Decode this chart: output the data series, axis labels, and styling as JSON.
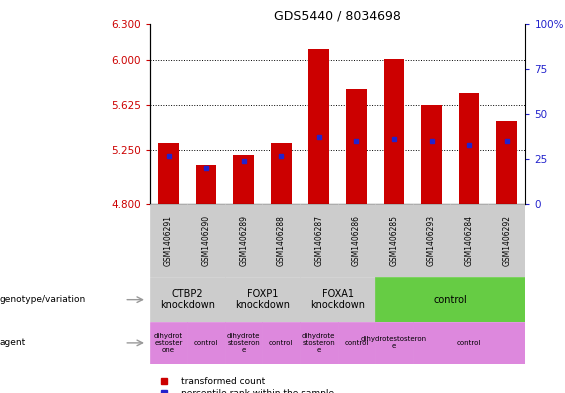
{
  "title": "GDS5440 / 8034698",
  "samples": [
    "GSM1406291",
    "GSM1406290",
    "GSM1406289",
    "GSM1406288",
    "GSM1406287",
    "GSM1406286",
    "GSM1406285",
    "GSM1406293",
    "GSM1406284",
    "GSM1406292"
  ],
  "transformed_count": [
    5.31,
    5.13,
    5.21,
    5.31,
    6.09,
    5.76,
    6.01,
    5.625,
    5.72,
    5.49
  ],
  "percentile_rank": [
    27,
    20,
    24,
    27,
    37,
    35,
    36,
    35,
    33,
    35
  ],
  "ylim_left": [
    4.8,
    6.3
  ],
  "ylim_right": [
    0,
    100
  ],
  "yticks_left": [
    4.8,
    5.25,
    5.625,
    6.0,
    6.3
  ],
  "yticks_right": [
    0,
    25,
    50,
    75,
    100
  ],
  "bar_color": "#cc0000",
  "dot_color": "#2222cc",
  "genotype_groups": [
    {
      "label": "CTBP2\nknockdown",
      "start": 0,
      "end": 2,
      "color": "#cccccc"
    },
    {
      "label": "FOXP1\nknockdown",
      "start": 2,
      "end": 4,
      "color": "#cccccc"
    },
    {
      "label": "FOXA1\nknockdown",
      "start": 4,
      "end": 6,
      "color": "#cccccc"
    },
    {
      "label": "control",
      "start": 6,
      "end": 10,
      "color": "#66cc44"
    }
  ],
  "agent_groups": [
    {
      "label": "dihydrot\nestoster\none",
      "start": 0,
      "end": 1,
      "color": "#dd88dd"
    },
    {
      "label": "control",
      "start": 1,
      "end": 2,
      "color": "#dd88dd"
    },
    {
      "label": "dihydrote\nstosteron\ne",
      "start": 2,
      "end": 3,
      "color": "#dd88dd"
    },
    {
      "label": "control",
      "start": 3,
      "end": 4,
      "color": "#dd88dd"
    },
    {
      "label": "dihydrote\nstosteron\ne",
      "start": 4,
      "end": 5,
      "color": "#dd88dd"
    },
    {
      "label": "control",
      "start": 5,
      "end": 6,
      "color": "#dd88dd"
    },
    {
      "label": "dihydrotestosteron\ne",
      "start": 6,
      "end": 7,
      "color": "#dd88dd"
    },
    {
      "label": "control",
      "start": 7,
      "end": 10,
      "color": "#dd88dd"
    }
  ],
  "legend_red": "transformed count",
  "legend_blue": "percentile rank within the sample",
  "bar_width": 0.55,
  "sample_row_color": "#cccccc",
  "arrow_color": "#999999"
}
